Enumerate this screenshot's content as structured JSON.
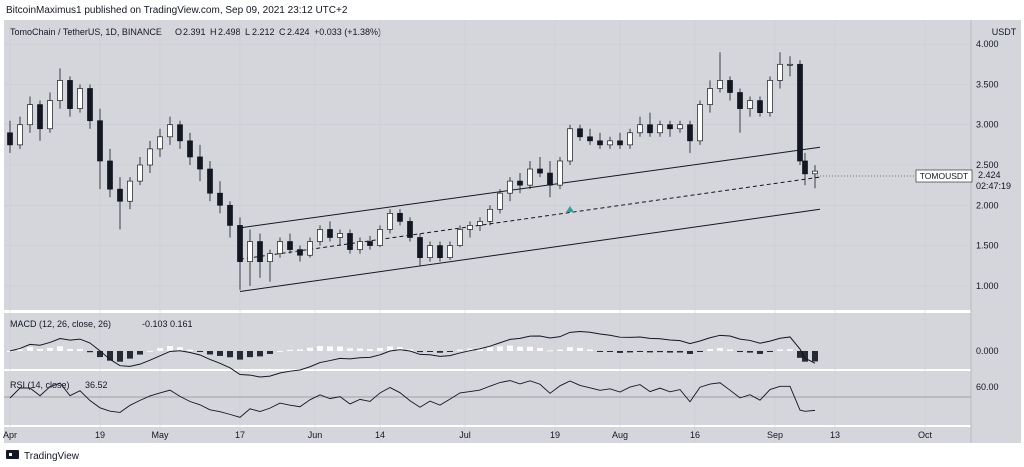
{
  "header": {
    "publish_text": "BitcoinMaximus1 published on TradingView.com, Sep 09, 2021 23:12 UTC+2"
  },
  "footer": {
    "brand": "TradingView"
  },
  "chart_data": {
    "type": "candlestick",
    "symbol_line": "TomoChain / TetherUS, 1D, BINANCE",
    "ohlc": {
      "o": "2.391",
      "h": "2.498",
      "l": "2.212",
      "c": "2.424",
      "chg": "+0.033 (+1.38%)"
    },
    "price_axis": {
      "unit": "USDT",
      "ticks": [
        "4.000",
        "3.500",
        "3.000",
        "2.500",
        "2.000",
        "1.500",
        "1.000"
      ],
      "range": [
        0.7,
        4.3
      ]
    },
    "price_label": {
      "symbol": "TOMOUSDT",
      "price": "2.424",
      "countdown": "02:47:19"
    },
    "x_ticks": [
      "Apr",
      "19",
      "May",
      "17",
      "Jun",
      "14",
      "Jul",
      "19",
      "Aug",
      "16",
      "Sep",
      "13",
      "Oct"
    ],
    "x_dates": [
      "2021-04-01",
      "2021-04-19",
      "2021-05-01",
      "2021-05-17",
      "2021-06-01",
      "2021-06-14",
      "2021-07-01",
      "2021-07-19",
      "2021-08-01",
      "2021-08-16",
      "2021-09-01",
      "2021-09-13",
      "2021-10-01"
    ],
    "channel": {
      "upper": [
        [
          "2021-05-17",
          1.72
        ],
        [
          "2021-09-10",
          2.72
        ]
      ],
      "middle": [
        [
          "2021-05-17",
          1.33
        ],
        [
          "2021-09-10",
          2.35
        ]
      ],
      "lower": [
        [
          "2021-05-17",
          0.93
        ],
        [
          "2021-09-10",
          1.95
        ]
      ]
    },
    "macd": {
      "label": "MACD (12, 26, close, 26)",
      "values": "-0.103 0.161",
      "ticks": [
        "0.000"
      ]
    },
    "rsi": {
      "label": "RSI (14, close)",
      "value": "36.52",
      "ticks": [
        "60.00"
      ]
    },
    "candles": [
      [
        "2021-04-01",
        2.9,
        3.05,
        2.65,
        2.75
      ],
      [
        "2021-04-03",
        2.75,
        3.1,
        2.7,
        3.0
      ],
      [
        "2021-04-05",
        3.0,
        3.35,
        2.9,
        3.25
      ],
      [
        "2021-04-07",
        3.25,
        3.3,
        2.8,
        2.95
      ],
      [
        "2021-04-09",
        2.95,
        3.4,
        2.9,
        3.3
      ],
      [
        "2021-04-11",
        3.3,
        3.7,
        3.2,
        3.55
      ],
      [
        "2021-04-13",
        3.55,
        3.6,
        3.1,
        3.2
      ],
      [
        "2021-04-15",
        3.2,
        3.5,
        3.15,
        3.45
      ],
      [
        "2021-04-17",
        3.45,
        3.5,
        2.95,
        3.05
      ],
      [
        "2021-04-19",
        3.05,
        3.2,
        2.2,
        2.55
      ],
      [
        "2021-04-21",
        2.55,
        2.7,
        2.1,
        2.2
      ],
      [
        "2021-04-23",
        2.2,
        2.35,
        1.7,
        2.05
      ],
      [
        "2021-04-25",
        2.05,
        2.35,
        1.95,
        2.3
      ],
      [
        "2021-04-27",
        2.3,
        2.6,
        2.25,
        2.5
      ],
      [
        "2021-04-29",
        2.5,
        2.8,
        2.4,
        2.7
      ],
      [
        "2021-05-01",
        2.7,
        2.95,
        2.6,
        2.85
      ],
      [
        "2021-05-03",
        2.85,
        3.1,
        2.75,
        3.0
      ],
      [
        "2021-05-05",
        3.0,
        3.05,
        2.7,
        2.8
      ],
      [
        "2021-05-07",
        2.8,
        2.9,
        2.5,
        2.6
      ],
      [
        "2021-05-09",
        2.6,
        2.75,
        2.3,
        2.45
      ],
      [
        "2021-05-11",
        2.45,
        2.55,
        2.05,
        2.15
      ],
      [
        "2021-05-13",
        2.15,
        2.3,
        1.9,
        2.0
      ],
      [
        "2021-05-15",
        2.0,
        2.05,
        1.6,
        1.75
      ],
      [
        "2021-05-17",
        1.75,
        1.85,
        0.95,
        1.3
      ],
      [
        "2021-05-19",
        1.3,
        1.7,
        1.0,
        1.55
      ],
      [
        "2021-05-21",
        1.55,
        1.65,
        1.1,
        1.3
      ],
      [
        "2021-05-23",
        1.3,
        1.45,
        1.05,
        1.4
      ],
      [
        "2021-05-25",
        1.4,
        1.6,
        1.35,
        1.55
      ],
      [
        "2021-05-27",
        1.55,
        1.65,
        1.4,
        1.45
      ],
      [
        "2021-05-29",
        1.45,
        1.5,
        1.3,
        1.38
      ],
      [
        "2021-05-31",
        1.38,
        1.6,
        1.35,
        1.55
      ],
      [
        "2021-06-02",
        1.55,
        1.75,
        1.5,
        1.7
      ],
      [
        "2021-06-04",
        1.7,
        1.8,
        1.55,
        1.6
      ],
      [
        "2021-06-06",
        1.6,
        1.7,
        1.5,
        1.65
      ],
      [
        "2021-06-08",
        1.65,
        1.7,
        1.4,
        1.45
      ],
      [
        "2021-06-10",
        1.45,
        1.6,
        1.4,
        1.55
      ],
      [
        "2021-06-12",
        1.55,
        1.62,
        1.45,
        1.5
      ],
      [
        "2021-06-14",
        1.5,
        1.75,
        1.48,
        1.7
      ],
      [
        "2021-06-16",
        1.7,
        1.95,
        1.65,
        1.9
      ],
      [
        "2021-06-18",
        1.9,
        1.95,
        1.75,
        1.8
      ],
      [
        "2021-06-20",
        1.8,
        1.85,
        1.55,
        1.6
      ],
      [
        "2021-06-22",
        1.6,
        1.65,
        1.25,
        1.35
      ],
      [
        "2021-06-24",
        1.35,
        1.55,
        1.3,
        1.5
      ],
      [
        "2021-06-26",
        1.5,
        1.55,
        1.3,
        1.35
      ],
      [
        "2021-06-28",
        1.35,
        1.55,
        1.32,
        1.5
      ],
      [
        "2021-06-30",
        1.5,
        1.75,
        1.48,
        1.7
      ],
      [
        "2021-07-02",
        1.7,
        1.8,
        1.6,
        1.75
      ],
      [
        "2021-07-04",
        1.75,
        1.85,
        1.68,
        1.8
      ],
      [
        "2021-07-06",
        1.8,
        2.0,
        1.75,
        1.95
      ],
      [
        "2021-07-08",
        1.95,
        2.2,
        1.9,
        2.15
      ],
      [
        "2021-07-10",
        2.15,
        2.35,
        2.05,
        2.3
      ],
      [
        "2021-07-12",
        2.3,
        2.4,
        2.15,
        2.25
      ],
      [
        "2021-07-14",
        2.25,
        2.55,
        2.2,
        2.45
      ],
      [
        "2021-07-16",
        2.45,
        2.6,
        2.35,
        2.4
      ],
      [
        "2021-07-18",
        2.4,
        2.55,
        2.1,
        2.25
      ],
      [
        "2021-07-20",
        2.25,
        2.6,
        2.2,
        2.55
      ],
      [
        "2021-07-22",
        2.55,
        3.0,
        2.5,
        2.95
      ],
      [
        "2021-07-24",
        2.95,
        3.0,
        2.8,
        2.85
      ],
      [
        "2021-07-26",
        2.85,
        2.95,
        2.75,
        2.8
      ],
      [
        "2021-07-28",
        2.8,
        2.9,
        2.7,
        2.75
      ],
      [
        "2021-07-30",
        2.75,
        2.85,
        2.7,
        2.8
      ],
      [
        "2021-08-01",
        2.8,
        2.9,
        2.7,
        2.75
      ],
      [
        "2021-08-03",
        2.75,
        2.95,
        2.7,
        2.9
      ],
      [
        "2021-08-05",
        2.9,
        3.1,
        2.85,
        3.0
      ],
      [
        "2021-08-07",
        3.0,
        3.15,
        2.85,
        2.9
      ],
      [
        "2021-08-09",
        2.9,
        3.05,
        2.85,
        3.0
      ],
      [
        "2021-08-11",
        3.0,
        3.05,
        2.85,
        2.95
      ],
      [
        "2021-08-13",
        2.95,
        3.05,
        2.9,
        3.0
      ],
      [
        "2021-08-15",
        3.0,
        3.05,
        2.65,
        2.8
      ],
      [
        "2021-08-17",
        2.8,
        3.3,
        2.75,
        3.25
      ],
      [
        "2021-08-19",
        3.25,
        3.55,
        3.15,
        3.45
      ],
      [
        "2021-08-21",
        3.45,
        3.9,
        3.4,
        3.55
      ],
      [
        "2021-08-23",
        3.55,
        3.6,
        3.3,
        3.4
      ],
      [
        "2021-08-25",
        3.4,
        3.45,
        2.9,
        3.2
      ],
      [
        "2021-08-27",
        3.2,
        3.35,
        3.1,
        3.3
      ],
      [
        "2021-08-29",
        3.3,
        3.35,
        3.1,
        3.15
      ],
      [
        "2021-08-31",
        3.15,
        3.6,
        3.1,
        3.55
      ],
      [
        "2021-09-02",
        3.55,
        3.9,
        3.45,
        3.75
      ],
      [
        "2021-09-04",
        3.75,
        3.85,
        3.6,
        3.75
      ],
      [
        "2021-09-06",
        3.75,
        3.8,
        2.5,
        2.55
      ],
      [
        "2021-09-07",
        2.55,
        2.65,
        2.25,
        2.39
      ],
      [
        "2021-09-09",
        2.391,
        2.498,
        2.212,
        2.424
      ]
    ]
  }
}
